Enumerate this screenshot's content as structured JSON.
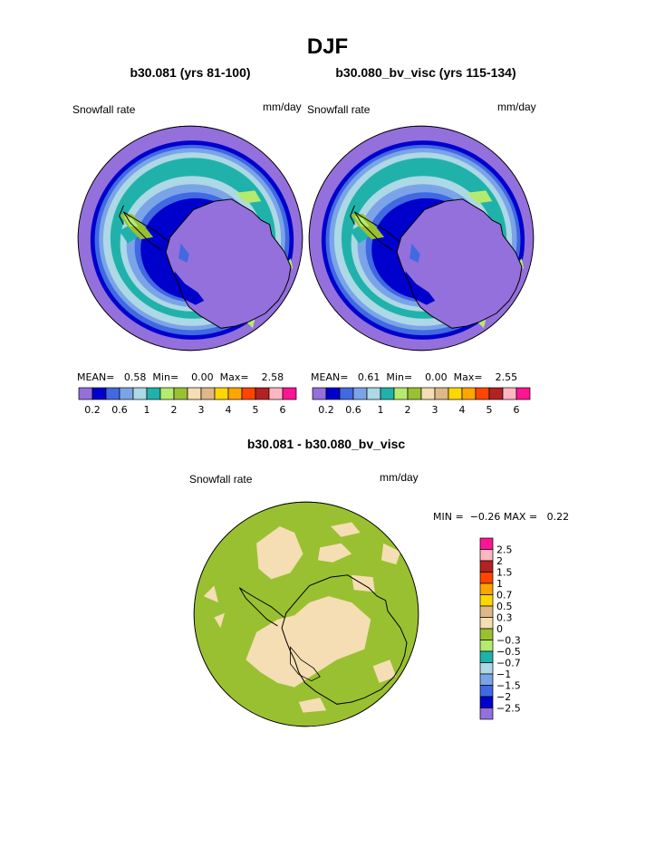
{
  "title": "DJF",
  "palette": {
    "c0": "#9370db",
    "c1": "#0000cd",
    "c2": "#4169e1",
    "c3": "#7ba4e8",
    "c4": "#add8e6",
    "c5": "#20b2aa",
    "c6": "#b4eb6e",
    "c7": "#99c031",
    "c8": "#f5deb3",
    "c9": "#deb887",
    "c10": "#ffd700",
    "c11": "#ffa500",
    "c12": "#ff4500",
    "c13": "#b22222",
    "c14": "#ffb6c1",
    "c15": "#ff1493",
    "coast": "#000000"
  },
  "panels": [
    {
      "title": "b30.081 (yrs 81-100)",
      "var_label": "Snowfall rate",
      "units": "mm/day",
      "stats": {
        "mean_label": "MEAN=",
        "mean": "0.58",
        "min_label": "Min=",
        "min": "0.00",
        "max_label": "Max=",
        "max": "2.58"
      },
      "colorbar_ticks": [
        "0.2",
        "0.6",
        "1",
        "2",
        "3",
        "4",
        "5",
        "6"
      ]
    },
    {
      "title": "b30.080_bv_visc (yrs 115-134)",
      "var_label": "Snowfall rate",
      "units": "mm/day",
      "stats": {
        "mean_label": "MEAN=",
        "mean": "0.61",
        "min_label": "Min=",
        "min": "0.00",
        "max_label": "Max=",
        "max": "2.55"
      },
      "colorbar_ticks": [
        "0.2",
        "0.6",
        "1",
        "2",
        "3",
        "4",
        "5",
        "6"
      ]
    }
  ],
  "diff_panel": {
    "title": "b30.081 - b30.080_bv_visc",
    "var_label": "Snowfall rate",
    "units": "mm/day",
    "stats": {
      "min_label": "MIN =",
      "min": "−0.26",
      "max_label": "MAX =",
      "max": "0.22"
    },
    "legend_levels": [
      "2.5",
      "2",
      "1.5",
      "1",
      "0.7",
      "0.5",
      "0.3",
      "0",
      "−0.3",
      "−0.5",
      "−0.7",
      "−1",
      "−1.5",
      "−2",
      "−2.5"
    ],
    "legend_colors": [
      "#ff1493",
      "#ffb6c1",
      "#b22222",
      "#ff4500",
      "#ffa500",
      "#ffd700",
      "#deb887",
      "#f5deb3",
      "#99c031",
      "#b4eb6e",
      "#20b2aa",
      "#add8e6",
      "#7ba4e8",
      "#4169e1",
      "#0000cd",
      "#9370db"
    ]
  }
}
